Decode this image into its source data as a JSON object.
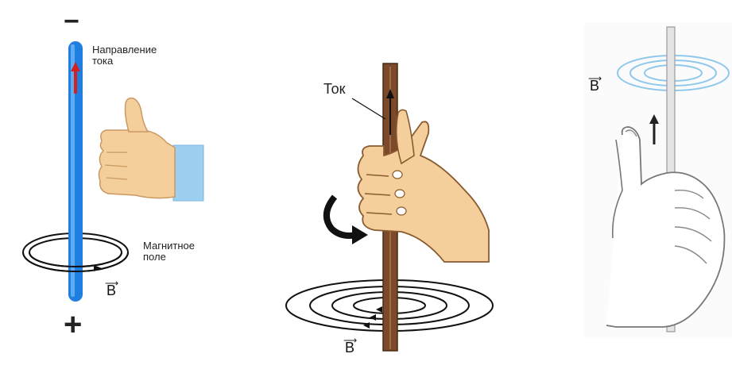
{
  "panel1": {
    "minus": "−",
    "plus": "+",
    "current_label": "Направление тока",
    "field_label": "Магнитное поле",
    "vector_symbol": "B"
  },
  "panel2": {
    "current_label": "Ток",
    "vector_symbol": "B"
  },
  "panel3": {
    "vector_symbol": "B"
  },
  "colors": {
    "wire_blue": "#1e7fe0",
    "current_red": "#d42020",
    "rod_brown": "#7a4a2a",
    "skin": "#f4cf9c",
    "sleeve": "#9ccff0",
    "field_rings_blue": "#8fc8ec"
  }
}
